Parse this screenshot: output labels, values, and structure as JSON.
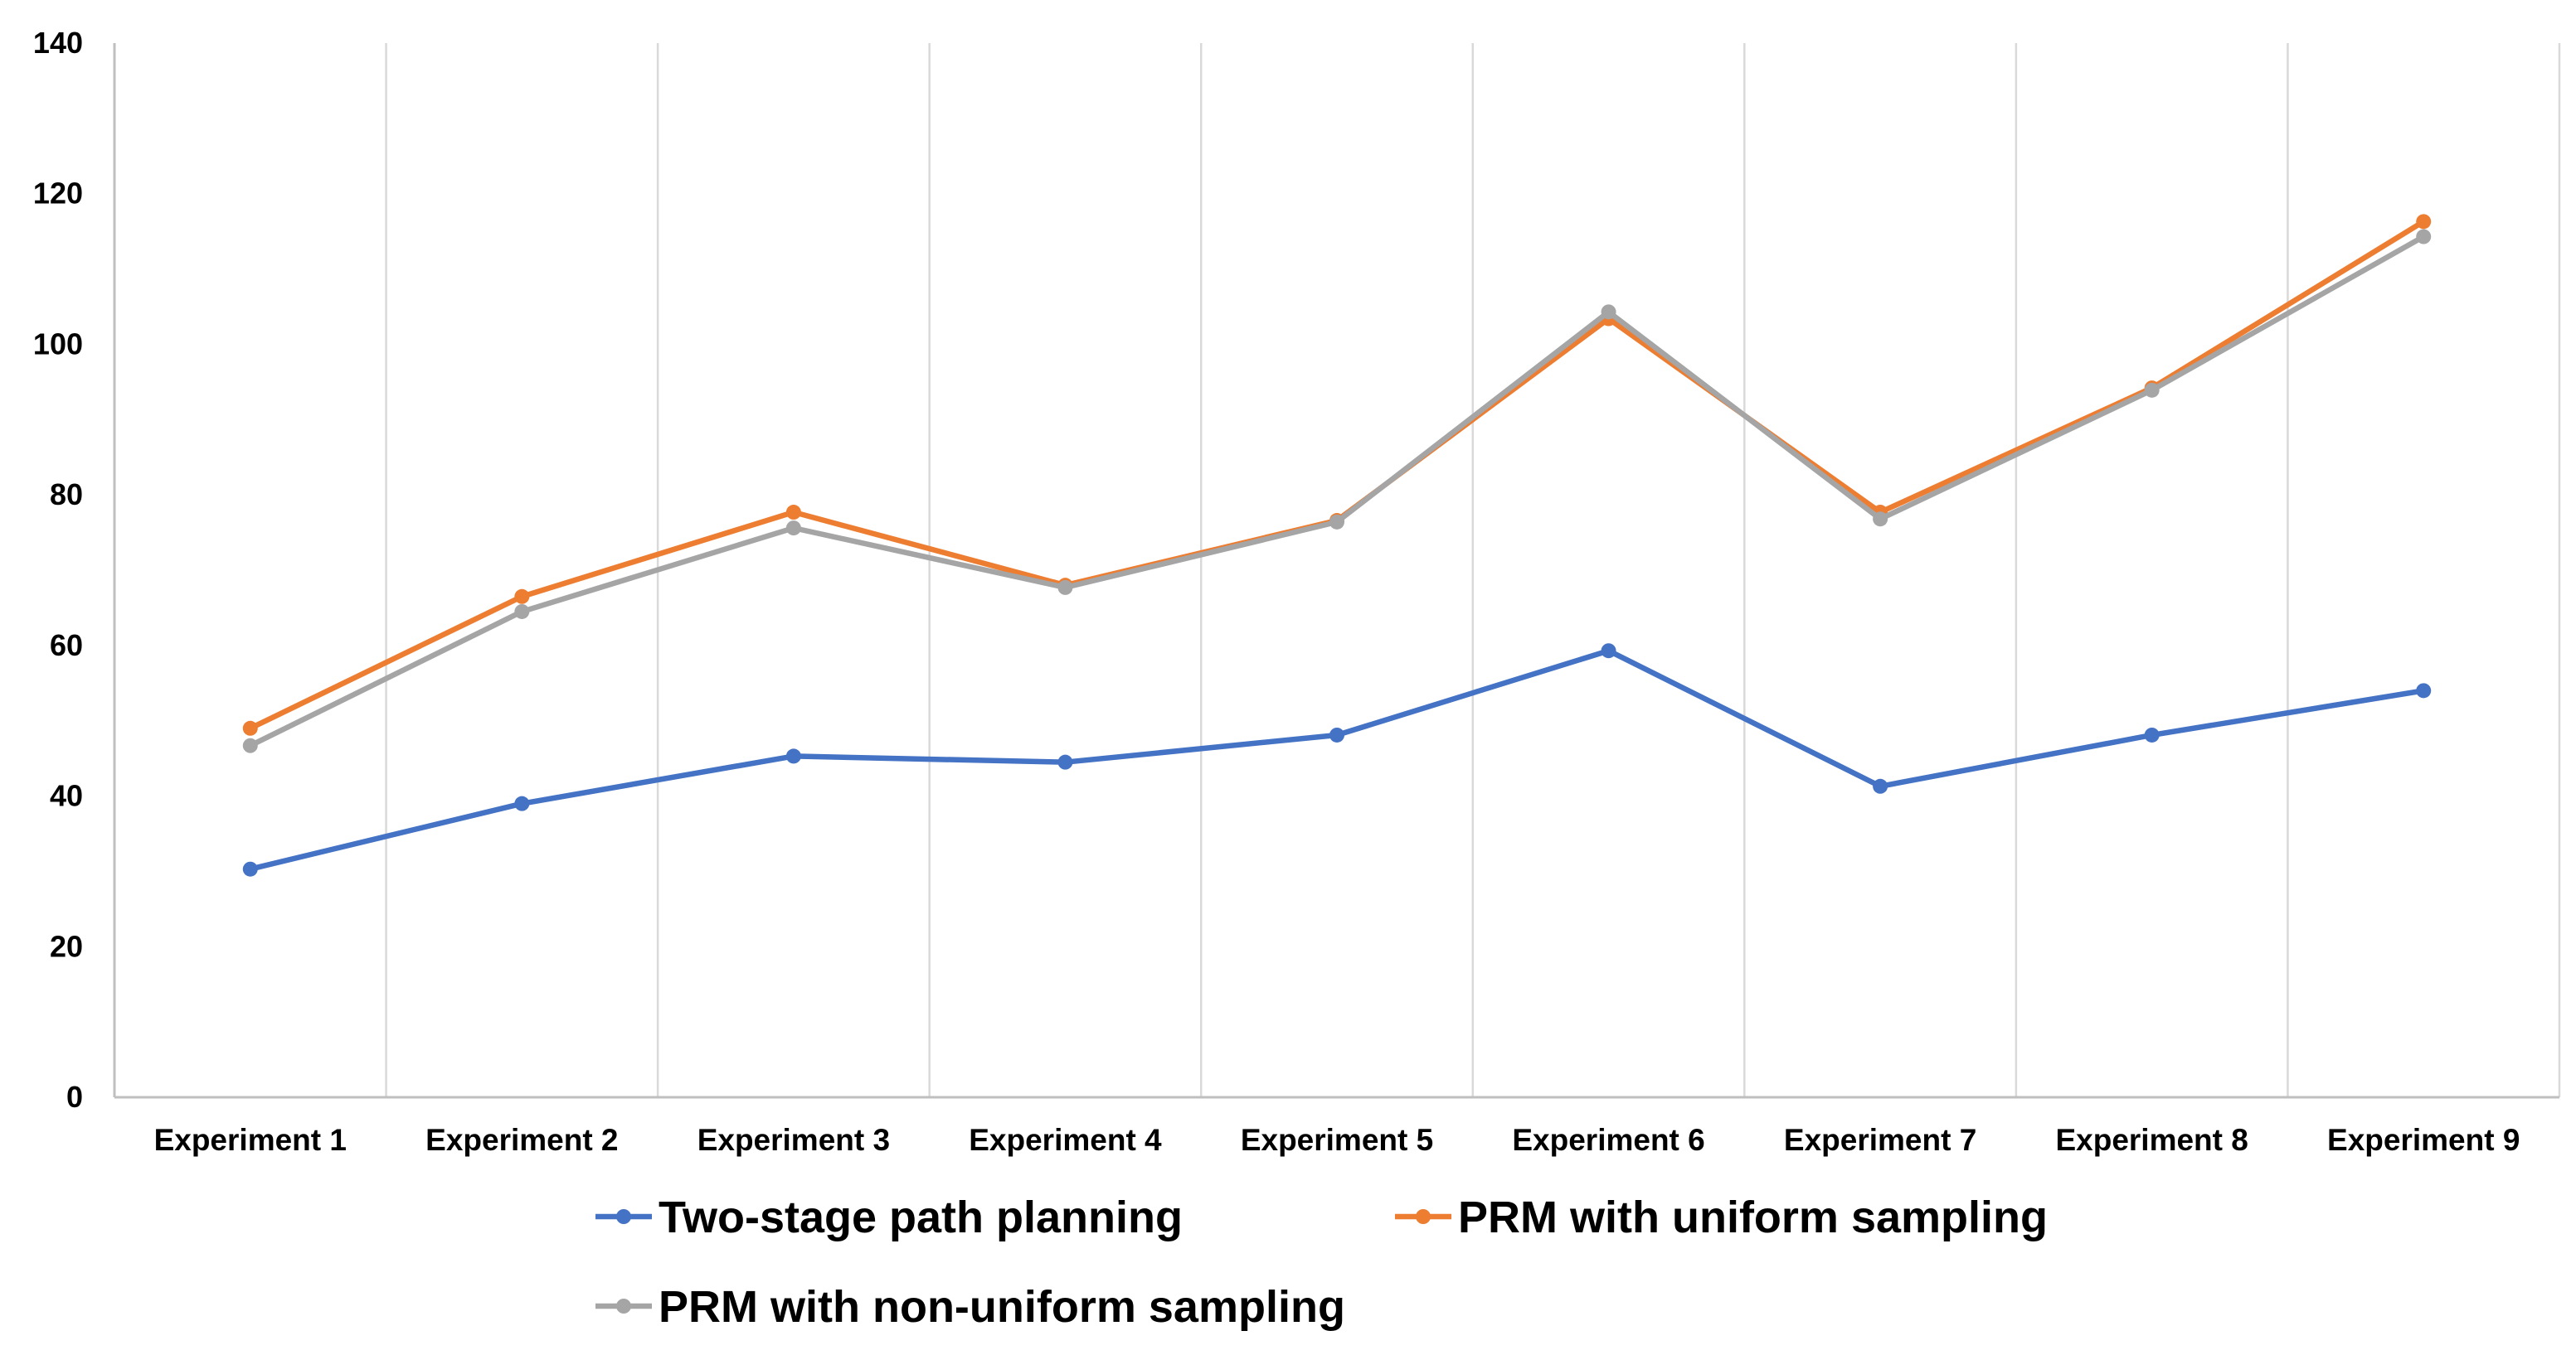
{
  "chart_data": {
    "type": "line",
    "title": "",
    "xlabel": "",
    "ylabel": "",
    "ylim": [
      0,
      140
    ],
    "yticks": [
      0,
      20,
      40,
      60,
      80,
      100,
      120,
      140
    ],
    "grid": "vertical",
    "legend_position": "bottom",
    "categories": [
      "Experiment 1",
      "Experiment 2",
      "Experiment 3",
      "Experiment 4",
      "Experiment 5",
      "Experiment 6",
      "Experiment 7",
      "Experiment 8",
      "Experiment 9"
    ],
    "series": [
      {
        "name": "Two-stage path planning",
        "color": "#4472C4",
        "values": [
          30.3,
          39.0,
          45.3,
          44.5,
          48.1,
          59.3,
          41.3,
          48.1,
          54.0
        ]
      },
      {
        "name": "PRM with uniform sampling",
        "color": "#ED7D31",
        "values": [
          49.0,
          66.5,
          77.7,
          68.0,
          76.6,
          103.4,
          77.7,
          94.2,
          116.3
        ]
      },
      {
        "name": "PRM with non-uniform sampling",
        "color": "#A5A5A5",
        "values": [
          46.7,
          64.5,
          75.6,
          67.7,
          76.4,
          104.3,
          76.8,
          93.9,
          114.3
        ]
      }
    ]
  }
}
